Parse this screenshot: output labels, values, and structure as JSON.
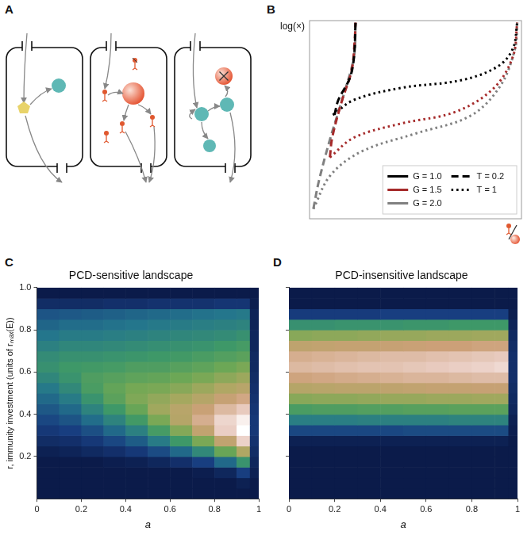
{
  "panel_letters": [
    "A",
    "B",
    "C",
    "D"
  ],
  "diagram": {
    "type": "diagram",
    "cells": 3
  },
  "chart_data": [
    {
      "type": "line",
      "y_label": "log(×)",
      "xlim": [
        0,
        1
      ],
      "ylim": [
        0,
        1
      ],
      "tick_labels": false,
      "grid": false,
      "legend": "lower right",
      "legend_items": [
        {
          "name": "G = 1.0",
          "color": "#000000",
          "line_style": "solid"
        },
        {
          "name": "G = 1.5",
          "color": "#a52a2a",
          "line_style": "solid"
        },
        {
          "name": "G = 2.0",
          "color": "#808080",
          "line_style": "solid"
        },
        {
          "name": "T = 0.2",
          "color": "#000000",
          "line_style": "dashed"
        },
        {
          "name": "T = 1",
          "color": "#000000",
          "line_style": "dotted"
        }
      ],
      "series": [
        {
          "color": "#000000",
          "line_style": "dashed",
          "x": [
            0.118,
            0.136,
            0.19,
            0.21,
            0.217
          ],
          "values": [
            0.524,
            0.6,
            0.71,
            0.82,
            0.99
          ]
        },
        {
          "color": "#a52a2a",
          "line_style": "dashed",
          "x": [
            0.096,
            0.107,
            0.154,
            0.199,
            0.213,
            0.217
          ],
          "values": [
            0.31,
            0.41,
            0.6,
            0.75,
            0.9,
            0.99
          ]
        },
        {
          "color": "#808080",
          "line_style": "dashed",
          "x": [
            0.018,
            0.044,
            0.099,
            0.165,
            0.21,
            0.217
          ],
          "values": [
            0.05,
            0.19,
            0.41,
            0.64,
            0.82,
            0.99
          ]
        },
        {
          "color": "#000000",
          "line_style": "dotted",
          "x": [
            0.11,
            0.21,
            0.43,
            0.72,
            0.89,
            0.96,
            0.98
          ],
          "values": [
            0.524,
            0.6,
            0.66,
            0.7,
            0.77,
            0.86,
            0.99
          ]
        },
        {
          "color": "#a52a2a",
          "line_style": "dotted",
          "x": [
            0.096,
            0.21,
            0.43,
            0.69,
            0.87,
            0.96,
            0.98
          ],
          "values": [
            0.31,
            0.41,
            0.48,
            0.54,
            0.66,
            0.82,
            0.99
          ]
        },
        {
          "color": "#808080",
          "line_style": "dotted",
          "x": [
            0.018,
            0.099,
            0.246,
            0.5,
            0.76,
            0.9,
            0.97,
            0.98
          ],
          "values": [
            0.05,
            0.22,
            0.34,
            0.43,
            0.52,
            0.67,
            0.86,
            0.99
          ]
        }
      ]
    },
    {
      "type": "heatmap",
      "title": "PCD-sensitive landscape",
      "x_label": "a",
      "y_label": "r, immunity investment (units of rₘₐₓ(E))",
      "xlim": [
        0,
        1
      ],
      "ylim": [
        0,
        1
      ],
      "xticks": [
        0,
        0.2,
        0.4,
        0.6,
        0.8,
        1
      ],
      "yticks": [
        0.2,
        0.4,
        0.6,
        0.8,
        {
          "value": 1,
          "label": "1.0"
        }
      ],
      "zlim": [
        0,
        1
      ],
      "x_bins": [
        0,
        0.1,
        0.2,
        0.3,
        0.4,
        0.5,
        0.6,
        0.7,
        0.8,
        0.9,
        0.96,
        1.0
      ],
      "y_bins": [
        0,
        0.05,
        0.1,
        0.15,
        0.2,
        0.25,
        0.3,
        0.35,
        0.4,
        0.45,
        0.5,
        0.55,
        0.6,
        0.65,
        0.7,
        0.75,
        0.8,
        0.85,
        0.9,
        0.95,
        1.0
      ],
      "cells": [
        [
          0,
          0,
          0,
          0,
          0,
          0,
          0,
          0,
          0,
          0,
          0
        ],
        [
          0,
          0,
          0,
          0,
          0,
          0,
          0,
          0,
          0,
          0.02,
          0
        ],
        [
          0,
          0,
          0,
          0,
          0,
          0,
          0,
          0.01,
          0.04,
          0.12,
          0.02
        ],
        [
          0,
          0,
          0,
          0.01,
          0.02,
          0.04,
          0.07,
          0.12,
          0.22,
          0.36,
          0.04
        ],
        [
          0.02,
          0.03,
          0.05,
          0.07,
          0.1,
          0.15,
          0.22,
          0.32,
          0.48,
          0.64,
          0.06
        ],
        [
          0.06,
          0.07,
          0.1,
          0.14,
          0.19,
          0.27,
          0.38,
          0.52,
          0.7,
          0.88,
          0.08
        ],
        [
          0.1,
          0.12,
          0.16,
          0.22,
          0.29,
          0.4,
          0.54,
          0.7,
          0.87,
          1.0,
          0.1
        ],
        [
          0.14,
          0.17,
          0.23,
          0.3,
          0.39,
          0.52,
          0.66,
          0.78,
          0.89,
          0.96,
          0.1
        ],
        [
          0.18,
          0.22,
          0.3,
          0.38,
          0.48,
          0.6,
          0.67,
          0.73,
          0.81,
          0.86,
          0.09
        ],
        [
          0.22,
          0.27,
          0.36,
          0.45,
          0.53,
          0.57,
          0.61,
          0.66,
          0.72,
          0.76,
          0.08
        ],
        [
          0.26,
          0.32,
          0.41,
          0.47,
          0.51,
          0.52,
          0.55,
          0.59,
          0.64,
          0.67,
          0.07
        ],
        [
          0.31,
          0.36,
          0.42,
          0.44,
          0.46,
          0.47,
          0.49,
          0.52,
          0.56,
          0.59,
          0.06
        ],
        [
          0.35,
          0.38,
          0.39,
          0.4,
          0.42,
          0.42,
          0.44,
          0.46,
          0.49,
          0.52,
          0.05
        ],
        [
          0.33,
          0.35,
          0.35,
          0.36,
          0.37,
          0.38,
          0.39,
          0.41,
          0.43,
          0.45,
          0.05
        ],
        [
          0.29,
          0.31,
          0.31,
          0.32,
          0.33,
          0.34,
          0.35,
          0.36,
          0.38,
          0.4,
          0.04
        ],
        [
          0.25,
          0.27,
          0.27,
          0.28,
          0.29,
          0.3,
          0.31,
          0.32,
          0.33,
          0.35,
          0.04
        ],
        [
          0.21,
          0.23,
          0.23,
          0.24,
          0.25,
          0.26,
          0.27,
          0.28,
          0.29,
          0.3,
          0.03
        ],
        [
          0.17,
          0.18,
          0.19,
          0.2,
          0.21,
          0.22,
          0.23,
          0.24,
          0.25,
          0.26,
          0.03
        ],
        [
          0.06,
          0.06,
          0.06,
          0.07,
          0.07,
          0.08,
          0.08,
          0.08,
          0.09,
          0.09,
          0.01
        ],
        [
          0,
          0,
          0,
          0,
          0,
          0,
          0,
          0,
          0,
          0,
          0
        ]
      ]
    },
    {
      "type": "heatmap",
      "title": "PCD-insensitive landscape",
      "x_label": "a",
      "xlim": [
        0,
        1
      ],
      "ylim": [
        0,
        1
      ],
      "xticks": [
        0,
        0.2,
        0.4,
        0.6,
        0.8,
        1
      ],
      "yticks": [
        0.2,
        0.4,
        0.6,
        0.8,
        {
          "value": 1,
          "label": "1.0"
        }
      ],
      "tick_labels": "x",
      "zlim": [
        0,
        1
      ],
      "x_bins": [
        0,
        0.1,
        0.2,
        0.3,
        0.4,
        0.5,
        0.6,
        0.7,
        0.8,
        0.9,
        0.96,
        1.0
      ],
      "y_bins": [
        0,
        0.05,
        0.1,
        0.15,
        0.2,
        0.25,
        0.3,
        0.35,
        0.4,
        0.45,
        0.5,
        0.55,
        0.6,
        0.65,
        0.7,
        0.75,
        0.8,
        0.85,
        0.9,
        0.95,
        1.0
      ],
      "cells": [
        [
          0,
          0,
          0,
          0,
          0,
          0,
          0,
          0,
          0,
          0,
          0
        ],
        [
          0,
          0,
          0,
          0,
          0,
          0,
          0,
          0,
          0,
          0,
          0
        ],
        [
          0,
          0,
          0,
          0,
          0,
          0,
          0,
          0,
          0,
          0,
          0
        ],
        [
          0,
          0,
          0,
          0,
          0,
          0,
          0,
          0,
          0,
          0,
          0
        ],
        [
          0,
          0,
          0,
          0,
          0,
          0,
          0,
          0,
          0,
          0,
          0
        ],
        [
          0.02,
          0.02,
          0.02,
          0.02,
          0.02,
          0.02,
          0.02,
          0.02,
          0.02,
          0.02,
          0
        ],
        [
          0.14,
          0.14,
          0.14,
          0.14,
          0.14,
          0.15,
          0.15,
          0.15,
          0.15,
          0.15,
          0.01
        ],
        [
          0.28,
          0.28,
          0.28,
          0.29,
          0.29,
          0.29,
          0.29,
          0.3,
          0.3,
          0.3,
          0.02
        ],
        [
          0.41,
          0.42,
          0.42,
          0.43,
          0.43,
          0.44,
          0.44,
          0.45,
          0.45,
          0.45,
          0.04
        ],
        [
          0.55,
          0.56,
          0.56,
          0.57,
          0.58,
          0.58,
          0.59,
          0.59,
          0.6,
          0.6,
          0.05
        ],
        [
          0.66,
          0.67,
          0.68,
          0.68,
          0.69,
          0.7,
          0.71,
          0.71,
          0.72,
          0.72,
          0.06
        ],
        [
          0.75,
          0.76,
          0.77,
          0.78,
          0.79,
          0.8,
          0.8,
          0.81,
          0.82,
          0.82,
          0.07
        ],
        [
          0.81,
          0.82,
          0.83,
          0.84,
          0.84,
          0.85,
          0.86,
          0.87,
          0.88,
          0.9,
          0.07
        ],
        [
          0.78,
          0.79,
          0.8,
          0.81,
          0.82,
          0.82,
          0.83,
          0.84,
          0.85,
          0.86,
          0.07
        ],
        [
          0.69,
          0.7,
          0.71,
          0.71,
          0.72,
          0.73,
          0.74,
          0.74,
          0.75,
          0.75,
          0.06
        ],
        [
          0.55,
          0.56,
          0.56,
          0.57,
          0.58,
          0.58,
          0.59,
          0.59,
          0.6,
          0.6,
          0.05
        ],
        [
          0.35,
          0.35,
          0.36,
          0.36,
          0.36,
          0.37,
          0.37,
          0.38,
          0.38,
          0.38,
          0.03
        ],
        [
          0.11,
          0.11,
          0.11,
          0.11,
          0.12,
          0.12,
          0.12,
          0.12,
          0.12,
          0.12,
          0.01
        ],
        [
          0,
          0,
          0,
          0,
          0,
          0,
          0,
          0,
          0,
          0,
          0
        ],
        [
          0,
          0,
          0,
          0,
          0,
          0,
          0,
          0,
          0,
          0,
          0
        ]
      ]
    }
  ]
}
